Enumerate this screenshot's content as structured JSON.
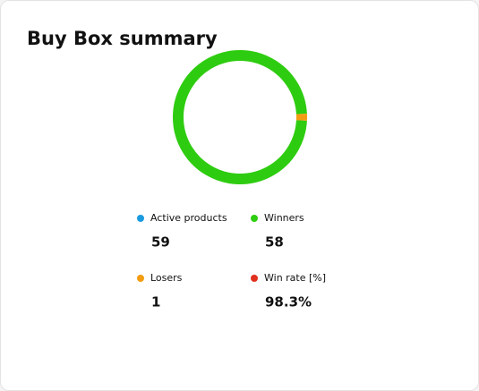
{
  "chart_data": {
    "type": "pie",
    "title": "Buy Box summary",
    "categories": [
      "Active products",
      "Winners",
      "Losers",
      "Win rate [%]"
    ],
    "values": [
      59,
      58,
      1,
      98.3
    ],
    "value_labels": [
      "59",
      "58",
      "1",
      "98.3%"
    ],
    "colors": [
      "#1a9be0",
      "#2ecc10",
      "#f39c12",
      "#e0301e"
    ]
  }
}
